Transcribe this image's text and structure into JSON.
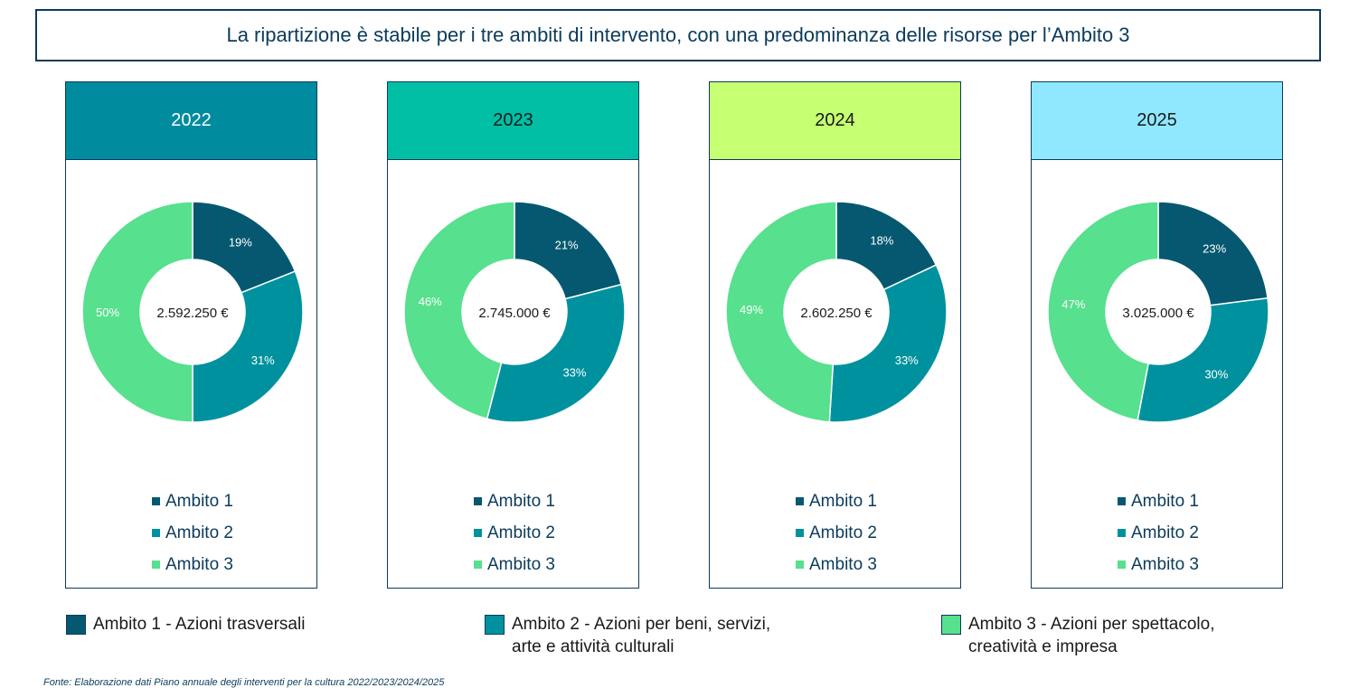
{
  "title": "La ripartizione è stabile per i tre ambiti di intervento, con una predominanza delle risorse per l’Ambito 3",
  "colors": {
    "ambito1": "#05586f",
    "ambito2": "#00919f",
    "ambito3": "#57e08d",
    "border": "#0b3b5c"
  },
  "chart_data": [
    {
      "type": "pie",
      "year": "2022",
      "header_color": "#008b9f",
      "header_text_color": "#ffffff",
      "center_label": "2.592.250 €",
      "categories": [
        "Ambito 1",
        "Ambito 2",
        "Ambito 3"
      ],
      "values": [
        19,
        31,
        50
      ],
      "labels": [
        "19%",
        "31%",
        "50%"
      ]
    },
    {
      "type": "pie",
      "year": "2023",
      "header_color": "#00bfa5",
      "header_text_color": "#1a1a1a",
      "center_label": "2.745.000 €",
      "categories": [
        "Ambito 1",
        "Ambito 2",
        "Ambito 3"
      ],
      "values": [
        21,
        33,
        46
      ],
      "labels": [
        "21%",
        "33%",
        "46%"
      ]
    },
    {
      "type": "pie",
      "year": "2024",
      "header_color": "#c6ff72",
      "header_text_color": "#1a1a1a",
      "center_label": "2.602.250 €",
      "categories": [
        "Ambito 1",
        "Ambito 2",
        "Ambito 3"
      ],
      "values": [
        18,
        33,
        49
      ],
      "labels": [
        "18%",
        "33%",
        "49%"
      ]
    },
    {
      "type": "pie",
      "year": "2025",
      "header_color": "#8fe8ff",
      "header_text_color": "#1a1a1a",
      "center_label": "3.025.000 €",
      "categories": [
        "Ambito 1",
        "Ambito 2",
        "Ambito 3"
      ],
      "values": [
        23,
        30,
        47
      ],
      "labels": [
        "23%",
        "30%",
        "47%"
      ]
    }
  ],
  "legend": {
    "items": [
      {
        "line1": "Ambito 1 - Azioni trasversali",
        "line2": ""
      },
      {
        "line1": "Ambito 2 - Azioni per beni, servizi,",
        "line2": "arte e attività culturali"
      },
      {
        "line1": "Ambito 3 - Azioni per spettacolo,",
        "line2": "creatività e impresa"
      }
    ]
  },
  "source": "Fonte: Elaborazione dati Piano annuale degli interventi per la cultura 2022/2023/2024/2025"
}
